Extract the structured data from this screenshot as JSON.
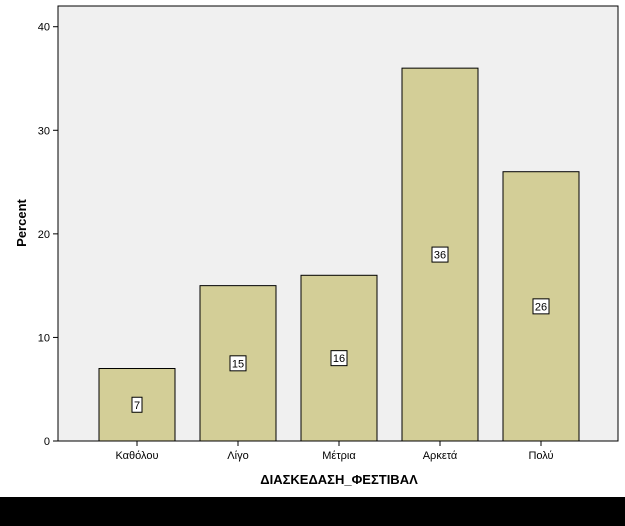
{
  "chart_data": {
    "type": "bar",
    "categories": [
      "Καθόλου",
      "Λίγο",
      "Μέτρια",
      "Αρκετά",
      "Πολύ"
    ],
    "values": [
      7,
      15,
      16,
      36,
      26
    ],
    "data_labels": [
      "7",
      "15",
      "16",
      "36",
      "26"
    ],
    "xlabel": "ΔΙΑΣΚΕΔΑΣΗ_ΦΕΣΤΙΒΑΛ",
    "ylabel": "Percent",
    "ylim": [
      0,
      42
    ],
    "yticks": [
      0,
      10,
      20,
      30,
      40
    ],
    "ytick_labels": [
      "0",
      "10",
      "20",
      "30",
      "40"
    ],
    "grid": false,
    "colors": {
      "plot_background": "#f0f0f0",
      "bar_fill": "#d3ce97",
      "bar_stroke": "#000000",
      "axis": "#000000",
      "label_box": "#ffffff"
    }
  }
}
